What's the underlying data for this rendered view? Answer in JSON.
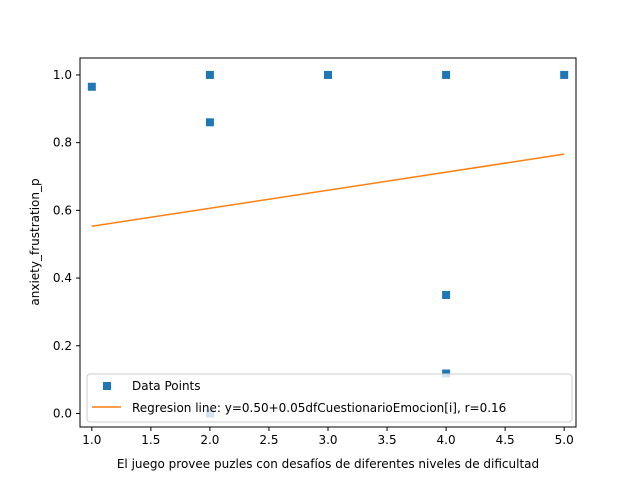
{
  "chart_data": {
    "type": "scatter",
    "xlabel": "El juego provee puzles con desafíos de diferentes niveles de dificultad",
    "ylabel": "anxiety_frustration_p",
    "xlim": [
      0.9,
      5.1
    ],
    "ylim": [
      -0.04,
      1.05
    ],
    "x_ticks": [
      1.0,
      1.5,
      2.0,
      2.5,
      3.0,
      3.5,
      4.0,
      4.5,
      5.0
    ],
    "x_tick_labels": [
      "1.0",
      "1.5",
      "2.0",
      "2.5",
      "3.0",
      "3.5",
      "4.0",
      "4.5",
      "5.0"
    ],
    "y_ticks": [
      0.0,
      0.2,
      0.4,
      0.6,
      0.8,
      1.0
    ],
    "y_tick_labels": [
      "0.0",
      "0.2",
      "0.4",
      "0.6",
      "0.8",
      "1.0"
    ],
    "grid": false,
    "legend_position": "lower-right",
    "series": [
      {
        "name": "Data Points",
        "kind": "scatter",
        "marker": "square",
        "color": "#1f77b4",
        "points": [
          {
            "x": 1,
            "y": 0.965
          },
          {
            "x": 2,
            "y": 1.0
          },
          {
            "x": 2,
            "y": 0.86
          },
          {
            "x": 2,
            "y": 0.0
          },
          {
            "x": 3,
            "y": 1.0
          },
          {
            "x": 4,
            "y": 1.0
          },
          {
            "x": 4,
            "y": 0.35
          },
          {
            "x": 4,
            "y": 0.118
          },
          {
            "x": 5,
            "y": 1.0
          }
        ]
      },
      {
        "name": "Regresion line: y=0.50+0.05dfCuestionarioEmocion[i], r=0.16",
        "kind": "line",
        "color": "#ff7f0e",
        "points": [
          {
            "x": 1,
            "y": 0.553
          },
          {
            "x": 5,
            "y": 0.766
          }
        ]
      }
    ]
  }
}
